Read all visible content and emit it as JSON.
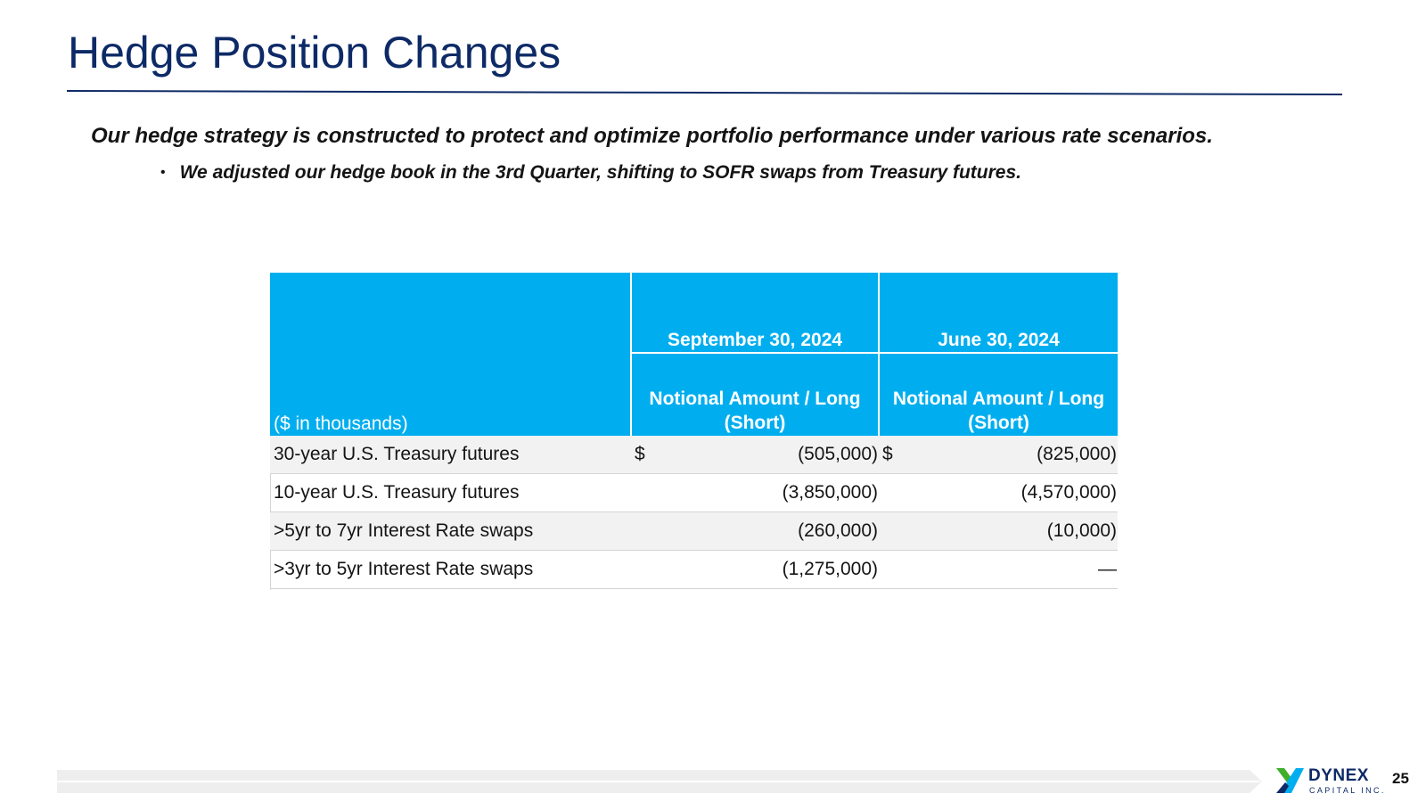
{
  "slide": {
    "title": "Hedge Position Changes",
    "subtitle": "Our hedge strategy is constructed to protect and optimize portfolio performance under various rate scenarios.",
    "bullet": "We adjusted our hedge book in the 3rd Quarter, shifting to SOFR swaps from Treasury futures.",
    "page_number": "25"
  },
  "table": {
    "stub_header": "($ in thousands)",
    "columns": [
      {
        "date": "September 30, 2024",
        "sub": "Notional  Amount / Long (Short)"
      },
      {
        "date": "June 30, 2024",
        "sub": "Notional  Amount / Long (Short)"
      }
    ],
    "rows": [
      {
        "label": "30-year U.S. Treasury futures",
        "currency1": "$",
        "v1": "(505,000)",
        "currency2": "$",
        "v2": "(825,000)"
      },
      {
        "label": "10-year U.S. Treasury futures",
        "currency1": "",
        "v1": "(3,850,000)",
        "currency2": "",
        "v2": "(4,570,000)"
      },
      {
        "label": ">5yr to 7yr Interest Rate swaps",
        "currency1": "",
        "v1": "(260,000)",
        "currency2": "",
        "v2": "(10,000)"
      },
      {
        "label": ">3yr to 5yr Interest Rate swaps",
        "currency1": "",
        "v1": "(1,275,000)",
        "currency2": "",
        "v2": "—"
      }
    ]
  },
  "logo": {
    "name": "DYNEX",
    "sub": "CAPITAL INC."
  },
  "colors": {
    "title": "#0d2a66",
    "header_fill": "#00aeef",
    "row_shade": "#f2f2f2"
  }
}
